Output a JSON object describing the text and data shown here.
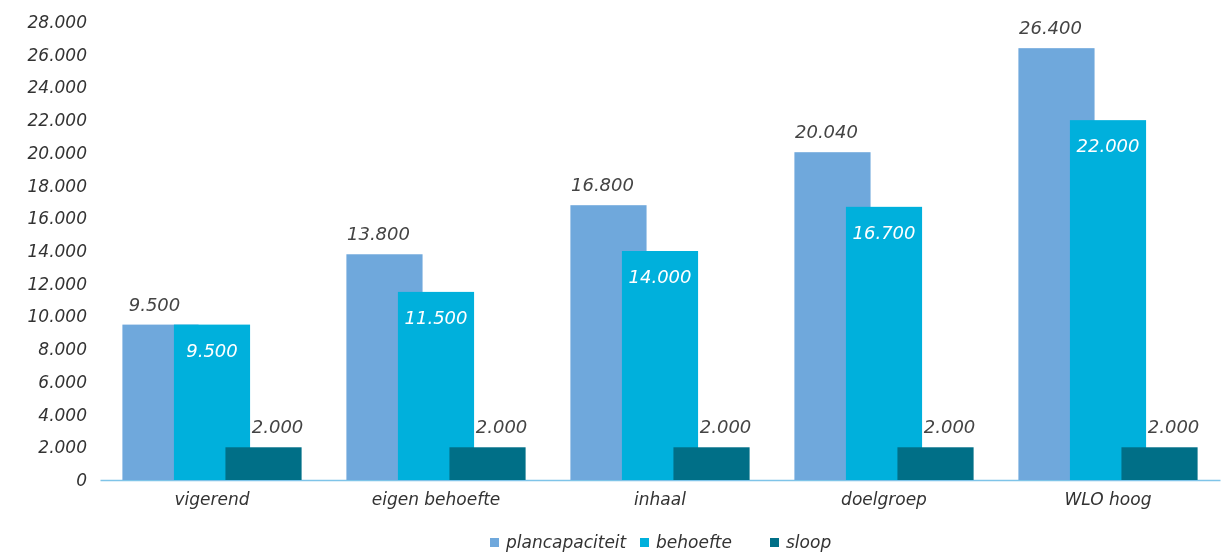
{
  "chart_data": {
    "type": "bar",
    "categories": [
      "vigerend",
      "eigen behoefte",
      "inhaal",
      "doelgroep",
      "WLO hoog"
    ],
    "series": [
      {
        "name": "plancapaciteit",
        "color": "#6fa8dc",
        "values": [
          9500,
          13800,
          16800,
          20040,
          26400
        ],
        "value_labels": [
          "9.500",
          "13.800",
          "16.800",
          "20.040",
          "26.400"
        ]
      },
      {
        "name": "behoefte",
        "color": "#00b0dc",
        "values": [
          9500,
          11500,
          14000,
          16700,
          22000
        ],
        "value_labels": [
          "9.500",
          "11.500",
          "14.000",
          "16.700",
          "22.000"
        ]
      },
      {
        "name": "sloop",
        "color": "#006f87",
        "values": [
          2000,
          2000,
          2000,
          2000,
          2000
        ],
        "value_labels": [
          "2.000",
          "2.000",
          "2.000",
          "2.000",
          "2.000"
        ]
      }
    ],
    "ylim": [
      0,
      28000
    ],
    "yticks": [
      {
        "value": 0,
        "label": "0"
      },
      {
        "value": 2000,
        "label": "2.000"
      },
      {
        "value": 4000,
        "label": "4.000"
      },
      {
        "value": 6000,
        "label": "6.000"
      },
      {
        "value": 8000,
        "label": "8.000"
      },
      {
        "value": 10000,
        "label": "10.000"
      },
      {
        "value": 12000,
        "label": "12.000"
      },
      {
        "value": 14000,
        "label": "14.000"
      },
      {
        "value": 16000,
        "label": "16.000"
      },
      {
        "value": 18000,
        "label": "18.000"
      },
      {
        "value": 20000,
        "label": "20.000"
      },
      {
        "value": 22000,
        "label": "22.000"
      },
      {
        "value": 24000,
        "label": "24.000"
      },
      {
        "value": 26000,
        "label": "26.000"
      },
      {
        "value": 28000,
        "label": "28.000"
      }
    ],
    "grid": false,
    "legend": "bottom"
  }
}
